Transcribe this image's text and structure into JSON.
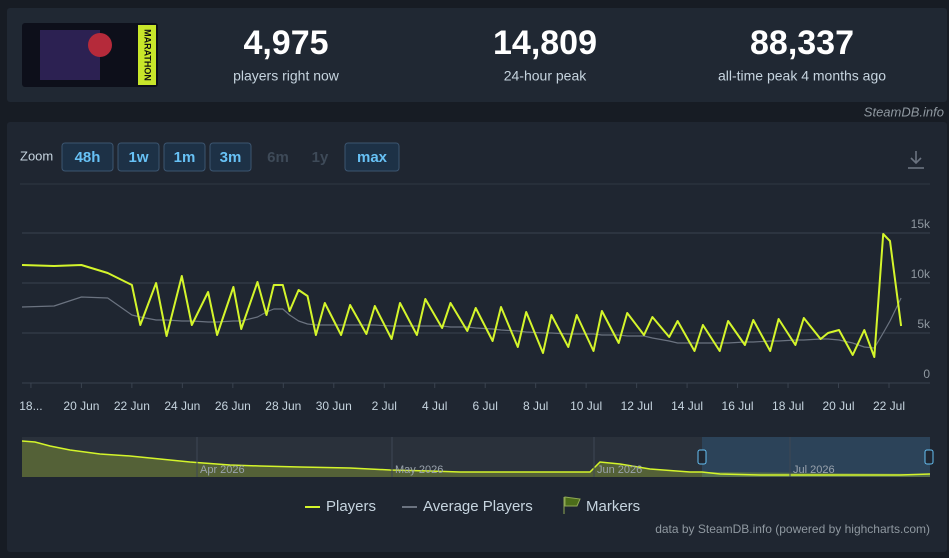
{
  "header": {
    "stats": [
      {
        "value": "4,975",
        "caption": "players right now"
      },
      {
        "value": "14,809",
        "caption": "24-hour peak"
      },
      {
        "value": "88,337",
        "caption": "all-time peak 4 months ago"
      }
    ],
    "game_art": "MARATHON",
    "source": "SteamDB.info"
  },
  "zoom": {
    "label": "Zoom",
    "buttons": [
      "48h",
      "1w",
      "1m",
      "3m",
      "6m",
      "1y",
      "max"
    ]
  },
  "chart_data": {
    "type": "line",
    "x": [
      "2026-06-17T15:30",
      "2026-06-18T22:00",
      "2026-06-20T00:00",
      "2026-06-21T01:00",
      "2026-06-22T00:00",
      "2026-06-22T08:00",
      "2026-06-22T23:00",
      "2026-06-23T09:00",
      "2026-06-23T23:30",
      "2026-06-24T09:00",
      "2026-06-25T00:30",
      "2026-06-25T09:00",
      "2026-06-26T00:30",
      "2026-06-26T08:00",
      "2026-06-26T23:30",
      "2026-06-27T08:00",
      "2026-06-27T15:00",
      "2026-06-27T23:30",
      "2026-06-28T06:00",
      "2026-06-28T14:30",
      "2026-06-28T23:00",
      "2026-06-29T07:00",
      "2026-06-29T15:30",
      "2026-06-30T07:00",
      "2026-06-30T15:30",
      "2026-07-01T07:00",
      "2026-07-01T15:00",
      "2026-07-02T07:00",
      "2026-07-02T15:00",
      "2026-07-03T07:00",
      "2026-07-03T15:00",
      "2026-07-04T07:00",
      "2026-07-04T15:00",
      "2026-07-05T07:00",
      "2026-07-05T15:00",
      "2026-07-06T07:00",
      "2026-07-06T15:00",
      "2026-07-07T07:00",
      "2026-07-07T15:00",
      "2026-07-08T07:00",
      "2026-07-08T15:00",
      "2026-07-09T07:00",
      "2026-07-09T15:00",
      "2026-07-10T07:00",
      "2026-07-10T15:00",
      "2026-07-11T07:00",
      "2026-07-11T15:00",
      "2026-07-12T07:00",
      "2026-07-12T15:00",
      "2026-07-13T07:00",
      "2026-07-13T15:00",
      "2026-07-14T07:00",
      "2026-07-14T15:00",
      "2026-07-15T07:00",
      "2026-07-15T15:00",
      "2026-07-16T07:00",
      "2026-07-16T15:00",
      "2026-07-17T07:00",
      "2026-07-17T15:00",
      "2026-07-18T07:00",
      "2026-07-18T15:00",
      "2026-07-19T07:00",
      "2026-07-19T14:00",
      "2026-07-20T00:30",
      "2026-07-20T13:30",
      "2026-07-21T00:30",
      "2026-07-21T10:00",
      "2026-07-21T18:30",
      "2026-07-22T01:00",
      "2026-07-22T11:30"
    ],
    "series": [
      {
        "name": "Players",
        "color": "#d4f52b",
        "values": [
          11800,
          11700,
          11800,
          11000,
          9800,
          5800,
          10000,
          4700,
          10700,
          5800,
          9100,
          4800,
          9600,
          5400,
          10100,
          6800,
          9800,
          9800,
          7200,
          9300,
          8700,
          4800,
          8000,
          4800,
          7800,
          4900,
          7700,
          4400,
          8000,
          4800,
          8400,
          5500,
          8000,
          5200,
          7500,
          4200,
          7600,
          3600,
          7100,
          3000,
          6800,
          3600,
          6800,
          3200,
          7200,
          4000,
          7000,
          4800,
          6600,
          4600,
          6200,
          3200,
          5800,
          3200,
          6200,
          3800,
          6300,
          3200,
          6400,
          3800,
          6500,
          4400,
          5000,
          5300,
          2800,
          5300,
          2600,
          14900,
          14200,
          5700
        ]
      },
      {
        "name": "Average Players",
        "color": "#6b7380",
        "values": [
          7600,
          7700,
          8600,
          8500,
          6800,
          6600,
          6300,
          6300,
          6200,
          6200,
          6100,
          6100,
          6200,
          6200,
          6600,
          7100,
          7400,
          7400,
          6800,
          6200,
          5900,
          5800,
          5800,
          5800,
          5800,
          5800,
          5800,
          5700,
          5700,
          5700,
          5700,
          5700,
          5600,
          5600,
          5500,
          5400,
          5300,
          5200,
          5100,
          5000,
          5000,
          4900,
          4900,
          4900,
          4800,
          4800,
          4700,
          4700,
          4500,
          4200,
          4000,
          4000,
          4000,
          4000,
          4000,
          4100,
          4100,
          4200,
          4200,
          4300,
          4300,
          4400,
          4400,
          4300,
          4000,
          3600,
          3500,
          5000,
          6200,
          8500
        ]
      }
    ],
    "xlim": [
      "2026-06-17T15:30",
      "2026-07-23T15:00"
    ],
    "xticks": [
      {
        "value": "2026-06-18T00:00",
        "label": "18..."
      },
      {
        "value": "2026-06-20T00:00",
        "label": "20 Jun"
      },
      {
        "value": "2026-06-22T00:00",
        "label": "22 Jun"
      },
      {
        "value": "2026-06-24T00:00",
        "label": "24 Jun"
      },
      {
        "value": "2026-06-26T00:00",
        "label": "26 Jun"
      },
      {
        "value": "2026-06-28T00:00",
        "label": "28 Jun"
      },
      {
        "value": "2026-06-30T00:00",
        "label": "30 Jun"
      },
      {
        "value": "2026-07-02T00:00",
        "label": "2 Jul"
      },
      {
        "value": "2026-07-04T00:00",
        "label": "4 Jul"
      },
      {
        "value": "2026-07-06T00:00",
        "label": "6 Jul"
      },
      {
        "value": "2026-07-08T00:00",
        "label": "8 Jul"
      },
      {
        "value": "2026-07-10T00:00",
        "label": "10 Jul"
      },
      {
        "value": "2026-07-12T00:00",
        "label": "12 Jul"
      },
      {
        "value": "2026-07-14T00:00",
        "label": "14 Jul"
      },
      {
        "value": "2026-07-16T00:00",
        "label": "16 Jul"
      },
      {
        "value": "2026-07-18T00:00",
        "label": "18 Jul"
      },
      {
        "value": "2026-07-20T00:00",
        "label": "20 Jul"
      },
      {
        "value": "2026-07-22T00:00",
        "label": "22 Jul"
      }
    ],
    "ylim": [
      0,
      19000
    ],
    "yticks": [
      0,
      {
        "value": 5000,
        "label": "5k"
      },
      {
        "value": 10000,
        "label": "10k"
      },
      {
        "value": 15000,
        "label": "15k"
      }
    ],
    "grid": true,
    "markers_legend": "Markers",
    "credit": "data by SteamDB.info (powered by highcharts.com)"
  },
  "navigator": {
    "labels": [
      "Apr 2026",
      "May 2026",
      "Jun 2026",
      "Jul 2026"
    ]
  }
}
